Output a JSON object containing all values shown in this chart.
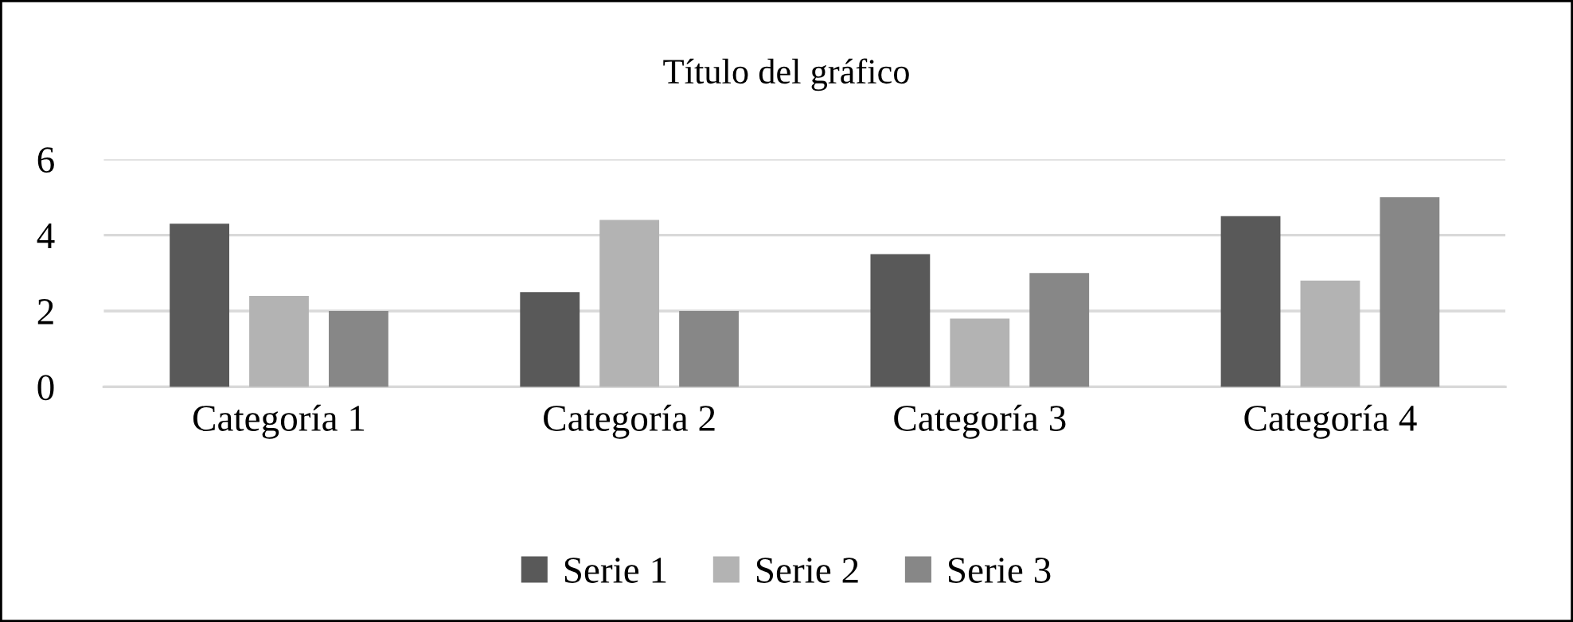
{
  "chart_data": {
    "type": "bar",
    "title": "Título del gráfico",
    "categories": [
      "Categoría 1",
      "Categoría 2",
      "Categoría 3",
      "Categoría 4"
    ],
    "series": [
      {
        "name": "Serie 1",
        "color": "#595959",
        "values": [
          4.3,
          2.5,
          3.5,
          4.5
        ]
      },
      {
        "name": "Serie 2",
        "color": "#b3b3b3",
        "values": [
          2.4,
          4.4,
          1.8,
          2.8
        ]
      },
      {
        "name": "Serie 3",
        "color": "#878787",
        "values": [
          2,
          2,
          3,
          5
        ]
      }
    ],
    "ylim": [
      0,
      6
    ],
    "yticks": [
      0,
      2,
      4,
      6
    ],
    "grid": "y",
    "legend": "bottom"
  }
}
